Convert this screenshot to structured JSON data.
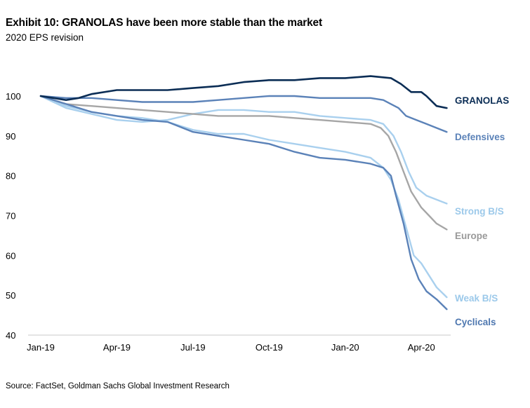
{
  "header": {
    "title": "Exhibit 10: GRANOLAS have been more stable than the market",
    "subtitle": "2020 EPS revision"
  },
  "footer": {
    "source": "Source: FactSet, Goldman Sachs Global Investment Research"
  },
  "colors": {
    "GRANOLAS": "#0b2d55",
    "Defensives": "#5b82b8",
    "Strong B/S": "#a9d0ee",
    "Europe": "#a6a6a6",
    "Weak B/S": "#a9d0ee",
    "Cyclicals": "#5b82b8"
  },
  "chart_data": {
    "type": "line",
    "title": "Exhibit 10: GRANOLAS have been more stable than the market",
    "subtitle": "2020 EPS revision",
    "xlabel": "",
    "ylabel": "",
    "ylim": [
      40,
      105
    ],
    "xlim": [
      0,
      16.1
    ],
    "yticks": [
      40,
      50,
      60,
      70,
      80,
      90,
      100
    ],
    "xticks": [
      {
        "label": "Jan-19",
        "pos": 0
      },
      {
        "label": "Apr-19",
        "pos": 3
      },
      {
        "label": "Jul-19",
        "pos": 6
      },
      {
        "label": "Oct-19",
        "pos": 9
      },
      {
        "label": "Jan-20",
        "pos": 12
      },
      {
        "label": "Apr-20",
        "pos": 15
      }
    ],
    "grid": false,
    "legend": "labels at line ends (right)",
    "x_unit": "months since Jan-19",
    "series": [
      {
        "name": "GRANOLAS",
        "points": [
          [
            0,
            100
          ],
          [
            0.5,
            99.5
          ],
          [
            1,
            99
          ],
          [
            1.5,
            99.5
          ],
          [
            2,
            100.5
          ],
          [
            3,
            101.5
          ],
          [
            4,
            101.5
          ],
          [
            5,
            101.5
          ],
          [
            6,
            102
          ],
          [
            7,
            102.5
          ],
          [
            8,
            103.5
          ],
          [
            9,
            104
          ],
          [
            10,
            104
          ],
          [
            11,
            104.5
          ],
          [
            12,
            104.5
          ],
          [
            13,
            105
          ],
          [
            13.8,
            104.5
          ],
          [
            14.2,
            103
          ],
          [
            14.6,
            101
          ],
          [
            15,
            101
          ],
          [
            15.2,
            100
          ],
          [
            15.6,
            97.5
          ],
          [
            16,
            97
          ]
        ]
      },
      {
        "name": "Defensives",
        "points": [
          [
            0,
            100
          ],
          [
            1,
            99.5
          ],
          [
            2,
            99.5
          ],
          [
            3,
            99
          ],
          [
            4,
            98.5
          ],
          [
            5,
            98.5
          ],
          [
            6,
            98.5
          ],
          [
            7,
            99
          ],
          [
            8,
            99.5
          ],
          [
            9,
            100
          ],
          [
            10,
            100
          ],
          [
            11,
            99.5
          ],
          [
            12,
            99.5
          ],
          [
            13,
            99.5
          ],
          [
            13.5,
            99
          ],
          [
            13.8,
            98
          ],
          [
            14.1,
            97
          ],
          [
            14.4,
            95
          ],
          [
            14.8,
            94
          ],
          [
            15.2,
            93
          ],
          [
            15.6,
            92
          ],
          [
            16,
            91
          ]
        ]
      },
      {
        "name": "Strong B/S",
        "points": [
          [
            0,
            100
          ],
          [
            1,
            97
          ],
          [
            2,
            95.5
          ],
          [
            3,
            94
          ],
          [
            4,
            93.5
          ],
          [
            5,
            94
          ],
          [
            6,
            95.5
          ],
          [
            7,
            96.5
          ],
          [
            8,
            96.5
          ],
          [
            9,
            96
          ],
          [
            10,
            96
          ],
          [
            11,
            95
          ],
          [
            12,
            94.5
          ],
          [
            13,
            94
          ],
          [
            13.5,
            93
          ],
          [
            13.9,
            90
          ],
          [
            14.2,
            86
          ],
          [
            14.5,
            81
          ],
          [
            14.8,
            77
          ],
          [
            15.2,
            75
          ],
          [
            15.6,
            74
          ],
          [
            16,
            73
          ]
        ]
      },
      {
        "name": "Europe",
        "points": [
          [
            0,
            100
          ],
          [
            1,
            98
          ],
          [
            2,
            97.5
          ],
          [
            3,
            97
          ],
          [
            4,
            96.5
          ],
          [
            5,
            96
          ],
          [
            6,
            95.5
          ],
          [
            7,
            95
          ],
          [
            8,
            95
          ],
          [
            9,
            95
          ],
          [
            10,
            94.5
          ],
          [
            11,
            94
          ],
          [
            12,
            93.5
          ],
          [
            13,
            93
          ],
          [
            13.4,
            92
          ],
          [
            13.7,
            90
          ],
          [
            14,
            86
          ],
          [
            14.3,
            81
          ],
          [
            14.6,
            76
          ],
          [
            15,
            72
          ],
          [
            15.3,
            70
          ],
          [
            15.6,
            68
          ],
          [
            16,
            66.5
          ]
        ]
      },
      {
        "name": "Weak B/S",
        "points": [
          [
            0,
            100
          ],
          [
            1,
            97.5
          ],
          [
            2,
            96
          ],
          [
            3,
            95
          ],
          [
            4,
            94.5
          ],
          [
            5,
            93.5
          ],
          [
            6,
            91.5
          ],
          [
            7,
            90.5
          ],
          [
            8,
            90.5
          ],
          [
            9,
            89
          ],
          [
            10,
            88
          ],
          [
            11,
            87
          ],
          [
            12,
            86
          ],
          [
            13,
            84.5
          ],
          [
            13.5,
            82
          ],
          [
            13.8,
            79
          ],
          [
            14.1,
            74
          ],
          [
            14.4,
            67
          ],
          [
            14.7,
            60
          ],
          [
            15,
            58
          ],
          [
            15.3,
            55
          ],
          [
            15.6,
            52
          ],
          [
            16,
            49.5
          ]
        ]
      },
      {
        "name": "Cyclicals",
        "points": [
          [
            0,
            100
          ],
          [
            1,
            98
          ],
          [
            2,
            96
          ],
          [
            3,
            95
          ],
          [
            4,
            94
          ],
          [
            5,
            93.5
          ],
          [
            6,
            91
          ],
          [
            7,
            90
          ],
          [
            8,
            89
          ],
          [
            9,
            88
          ],
          [
            10,
            86
          ],
          [
            11,
            84.5
          ],
          [
            12,
            84
          ],
          [
            13,
            83
          ],
          [
            13.5,
            82
          ],
          [
            13.8,
            80
          ],
          [
            14,
            75
          ],
          [
            14.3,
            68
          ],
          [
            14.6,
            59
          ],
          [
            14.9,
            54
          ],
          [
            15.2,
            51
          ],
          [
            15.6,
            49
          ],
          [
            16,
            46.5
          ]
        ]
      }
    ]
  }
}
